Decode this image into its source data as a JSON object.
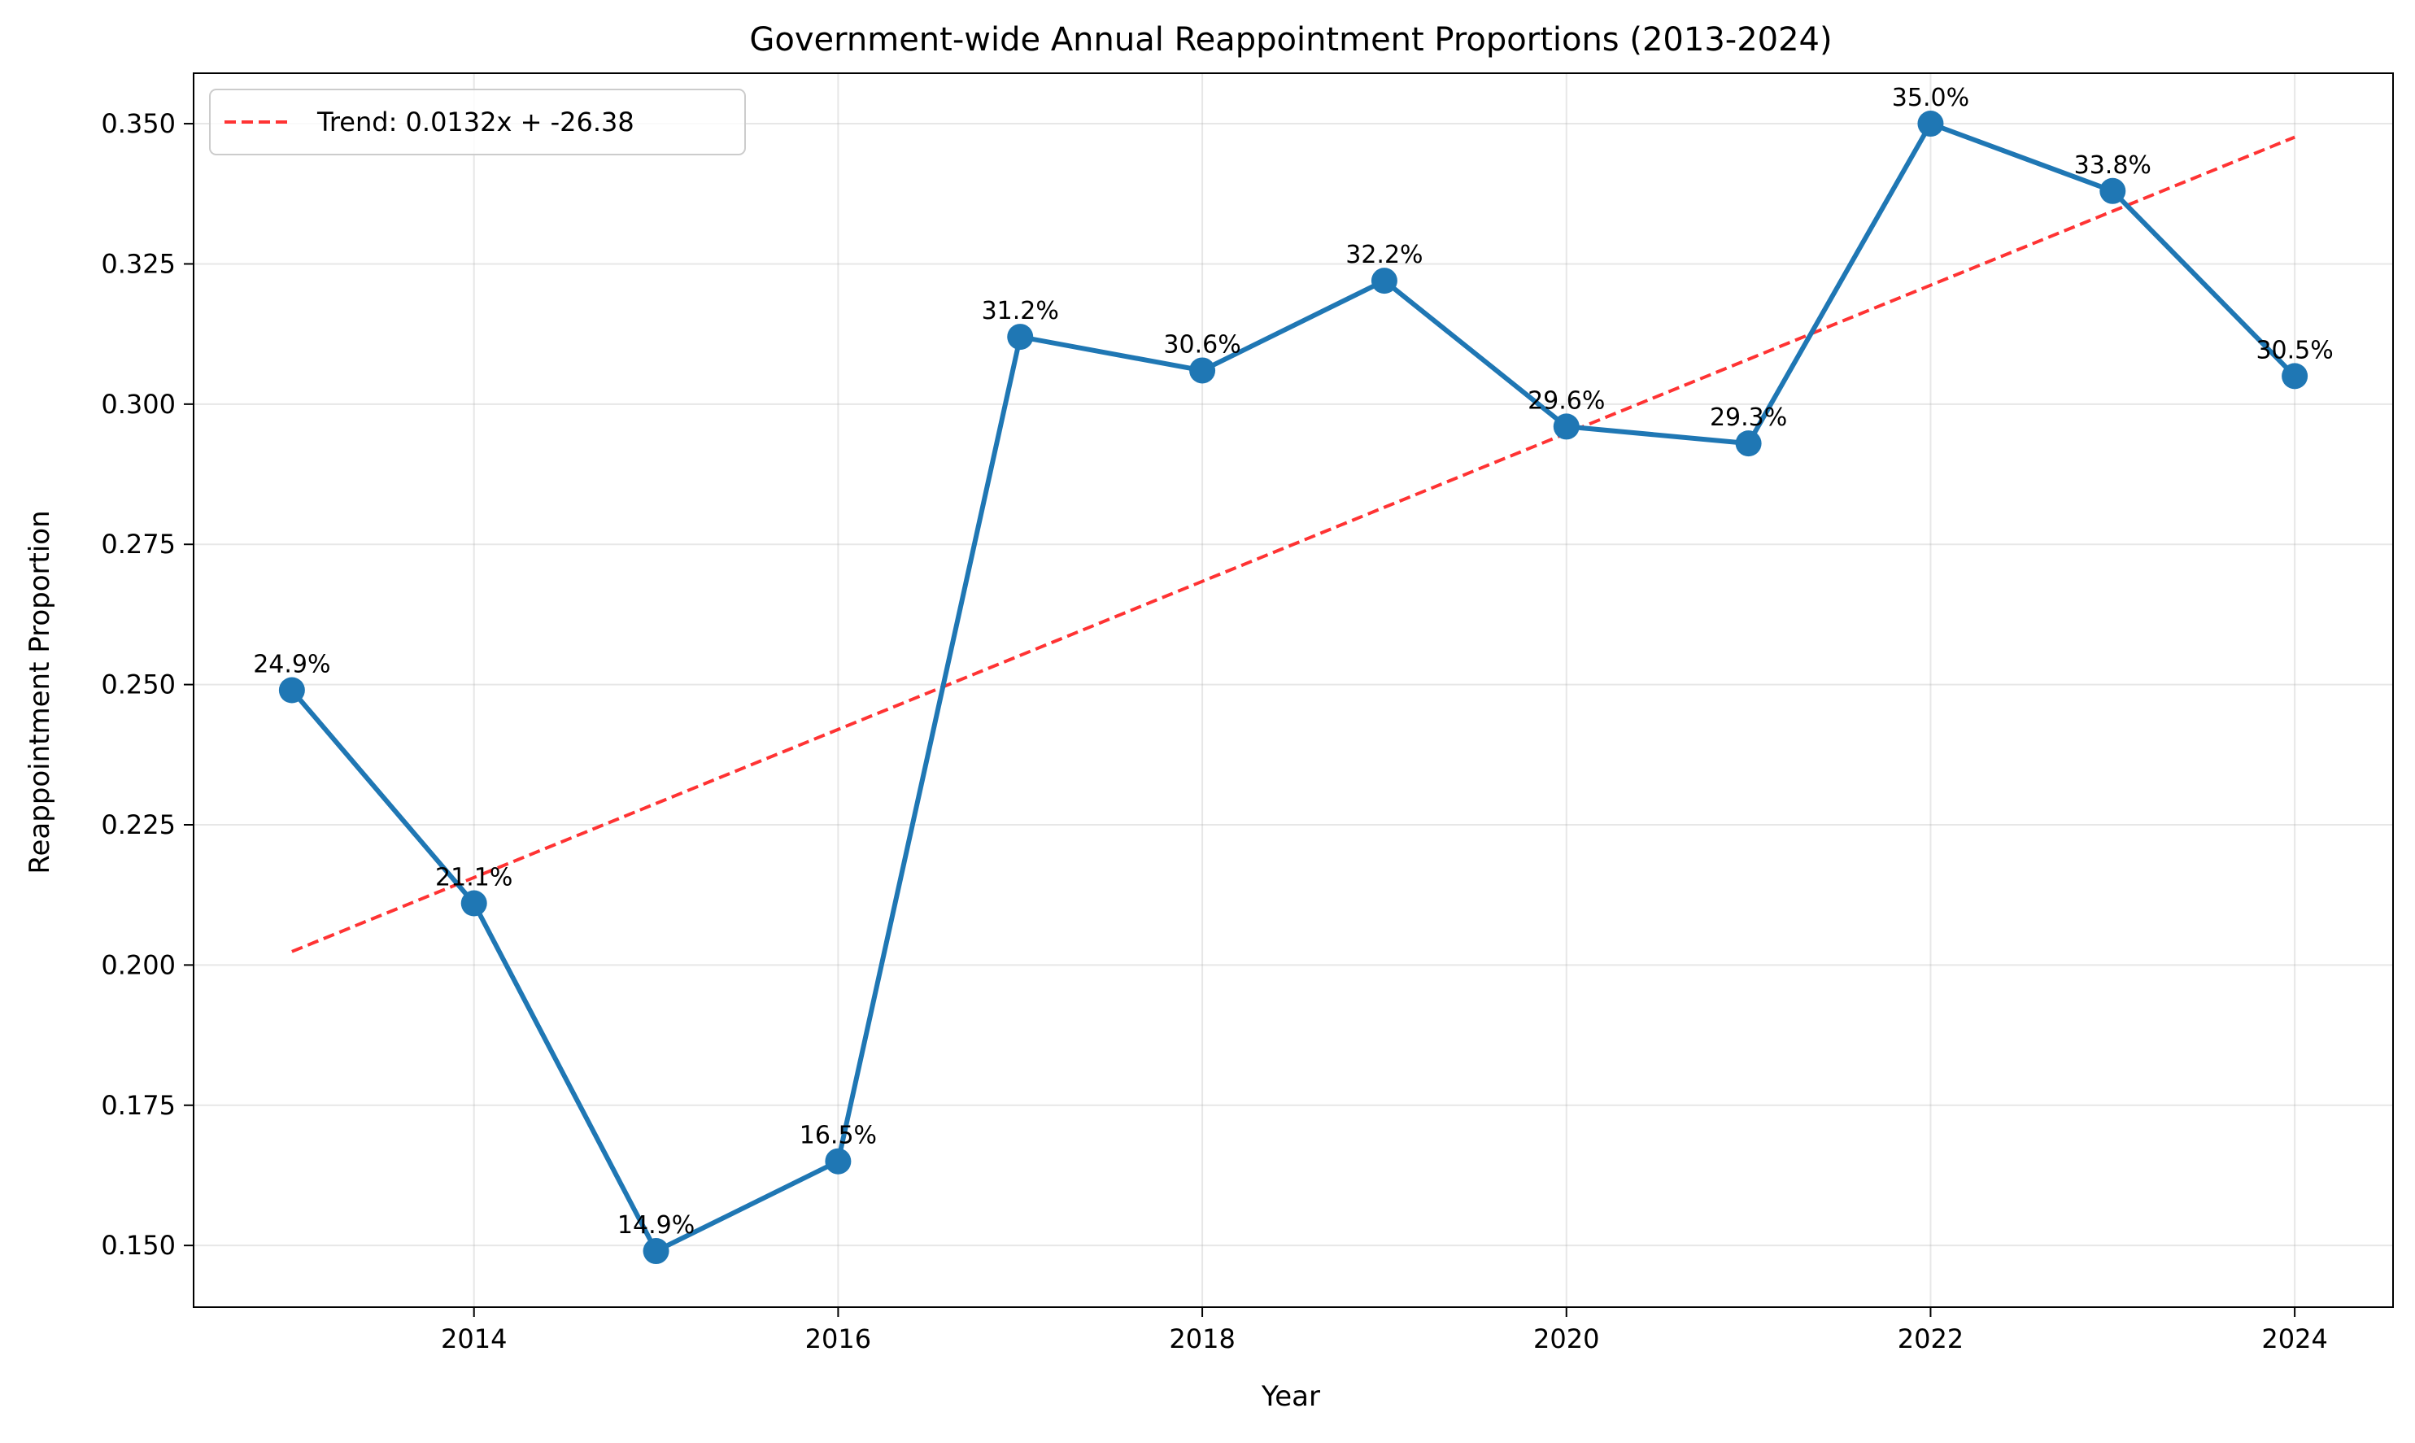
{
  "chart_data": {
    "type": "line",
    "title": "Government-wide Annual Reappointment Proportions (2013-2024)",
    "xlabel": "Year",
    "ylabel": "Reappointment Proportion",
    "xlim": [
      2012.46,
      2024.54
    ],
    "ylim": [
      0.139,
      0.359
    ],
    "xticks": [
      2014,
      2016,
      2018,
      2020,
      2022,
      2024
    ],
    "yticks": [
      0.15,
      0.175,
      0.2,
      0.225,
      0.25,
      0.275,
      0.3,
      0.325,
      0.35
    ],
    "ytick_labels": [
      "0.150",
      "0.175",
      "0.200",
      "0.225",
      "0.250",
      "0.275",
      "0.300",
      "0.325",
      "0.350"
    ],
    "grid": true,
    "legend_position": "upper-left",
    "series": [
      {
        "kind": "data",
        "color": "#1f77b4",
        "marker": "circle",
        "x": [
          2013,
          2014,
          2015,
          2016,
          2017,
          2018,
          2019,
          2020,
          2021,
          2022,
          2023,
          2024
        ],
        "y": [
          0.249,
          0.211,
          0.149,
          0.165,
          0.312,
          0.306,
          0.322,
          0.296,
          0.293,
          0.35,
          0.338,
          0.305
        ],
        "labels": [
          "24.9%",
          "21.1%",
          "14.9%",
          "16.5%",
          "31.2%",
          "30.6%",
          "32.2%",
          "29.6%",
          "29.3%",
          "35.0%",
          "33.8%",
          "30.5%"
        ]
      },
      {
        "kind": "trend",
        "name": "Trend: 0.0132x + -26.38",
        "color": "#ff0000",
        "style": "dashed",
        "x": [
          2013,
          2024
        ],
        "y": [
          0.2024,
          0.3476
        ]
      }
    ]
  }
}
